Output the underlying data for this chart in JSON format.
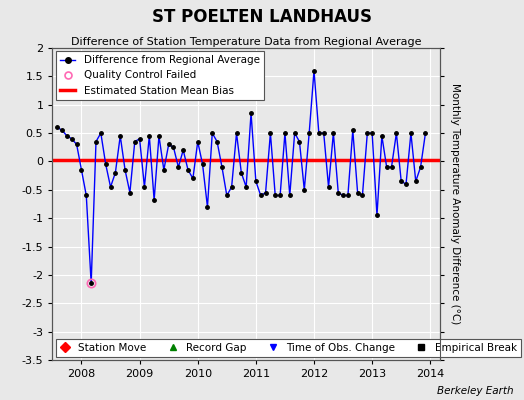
{
  "title": "ST POELTEN LANDHAUS",
  "subtitle": "Difference of Station Temperature Data from Regional Average",
  "ylabel": "Monthly Temperature Anomaly Difference (°C)",
  "background_color": "#e8e8e8",
  "plot_background": "#e8e8e8",
  "xlim": [
    2007.5,
    2014.17
  ],
  "ylim": [
    -3.5,
    2.0
  ],
  "yticks": [
    -3.5,
    -3.0,
    -2.5,
    -2.0,
    -1.5,
    -1.0,
    -0.5,
    0.0,
    0.5,
    1.0,
    1.5,
    2.0
  ],
  "ytick_labels": [
    "-3.5",
    "-3",
    "-2.5",
    "-2",
    "-1.5",
    "-1",
    "-0.5",
    "0",
    "0.5",
    "1",
    "1.5",
    "2"
  ],
  "xticks": [
    2008,
    2009,
    2010,
    2011,
    2012,
    2013,
    2014
  ],
  "bias_value": 0.03,
  "line_color": "#0000ff",
  "bias_color": "#ff0000",
  "data": [
    [
      2007.583,
      0.6
    ],
    [
      2007.667,
      0.55
    ],
    [
      2007.75,
      0.45
    ],
    [
      2007.833,
      0.4
    ],
    [
      2007.917,
      0.3
    ],
    [
      2008.0,
      -0.15
    ],
    [
      2008.083,
      -0.6
    ],
    [
      2008.167,
      -2.15
    ],
    [
      2008.25,
      0.35
    ],
    [
      2008.333,
      0.5
    ],
    [
      2008.417,
      -0.05
    ],
    [
      2008.5,
      -0.45
    ],
    [
      2008.583,
      -0.2
    ],
    [
      2008.667,
      0.45
    ],
    [
      2008.75,
      -0.15
    ],
    [
      2008.833,
      -0.55
    ],
    [
      2008.917,
      0.35
    ],
    [
      2009.0,
      0.4
    ],
    [
      2009.083,
      -0.45
    ],
    [
      2009.167,
      0.45
    ],
    [
      2009.25,
      -0.68
    ],
    [
      2009.333,
      0.45
    ],
    [
      2009.417,
      -0.15
    ],
    [
      2009.5,
      0.3
    ],
    [
      2009.583,
      0.25
    ],
    [
      2009.667,
      -0.1
    ],
    [
      2009.75,
      0.2
    ],
    [
      2009.833,
      -0.15
    ],
    [
      2009.917,
      -0.3
    ],
    [
      2010.0,
      0.35
    ],
    [
      2010.083,
      -0.05
    ],
    [
      2010.167,
      -0.8
    ],
    [
      2010.25,
      0.5
    ],
    [
      2010.333,
      0.35
    ],
    [
      2010.417,
      -0.1
    ],
    [
      2010.5,
      -0.6
    ],
    [
      2010.583,
      -0.45
    ],
    [
      2010.667,
      0.5
    ],
    [
      2010.75,
      -0.2
    ],
    [
      2010.833,
      -0.45
    ],
    [
      2010.917,
      0.85
    ],
    [
      2011.0,
      -0.35
    ],
    [
      2011.083,
      -0.6
    ],
    [
      2011.167,
      -0.55
    ],
    [
      2011.25,
      0.5
    ],
    [
      2011.333,
      -0.6
    ],
    [
      2011.417,
      -0.6
    ],
    [
      2011.5,
      0.5
    ],
    [
      2011.583,
      -0.6
    ],
    [
      2011.667,
      0.5
    ],
    [
      2011.75,
      0.35
    ],
    [
      2011.833,
      -0.5
    ],
    [
      2011.917,
      0.5
    ],
    [
      2012.0,
      1.6
    ],
    [
      2012.083,
      0.5
    ],
    [
      2012.167,
      0.5
    ],
    [
      2012.25,
      -0.45
    ],
    [
      2012.333,
      0.5
    ],
    [
      2012.417,
      -0.55
    ],
    [
      2012.5,
      -0.6
    ],
    [
      2012.583,
      -0.6
    ],
    [
      2012.667,
      0.55
    ],
    [
      2012.75,
      -0.55
    ],
    [
      2012.833,
      -0.6
    ],
    [
      2012.917,
      0.5
    ],
    [
      2013.0,
      0.5
    ],
    [
      2013.083,
      -0.95
    ],
    [
      2013.167,
      0.45
    ],
    [
      2013.25,
      -0.1
    ],
    [
      2013.333,
      -0.1
    ],
    [
      2013.417,
      0.5
    ],
    [
      2013.5,
      -0.35
    ],
    [
      2013.583,
      -0.4
    ],
    [
      2013.667,
      0.5
    ],
    [
      2013.75,
      -0.35
    ],
    [
      2013.833,
      -0.1
    ],
    [
      2013.917,
      0.5
    ]
  ],
  "qc_failed": [
    [
      2008.167,
      -2.15
    ]
  ],
  "berkeley_earth_text": "Berkeley Earth",
  "title_fontsize": 12,
  "subtitle_fontsize": 8,
  "tick_label_fontsize": 8,
  "ylabel_fontsize": 7.5
}
